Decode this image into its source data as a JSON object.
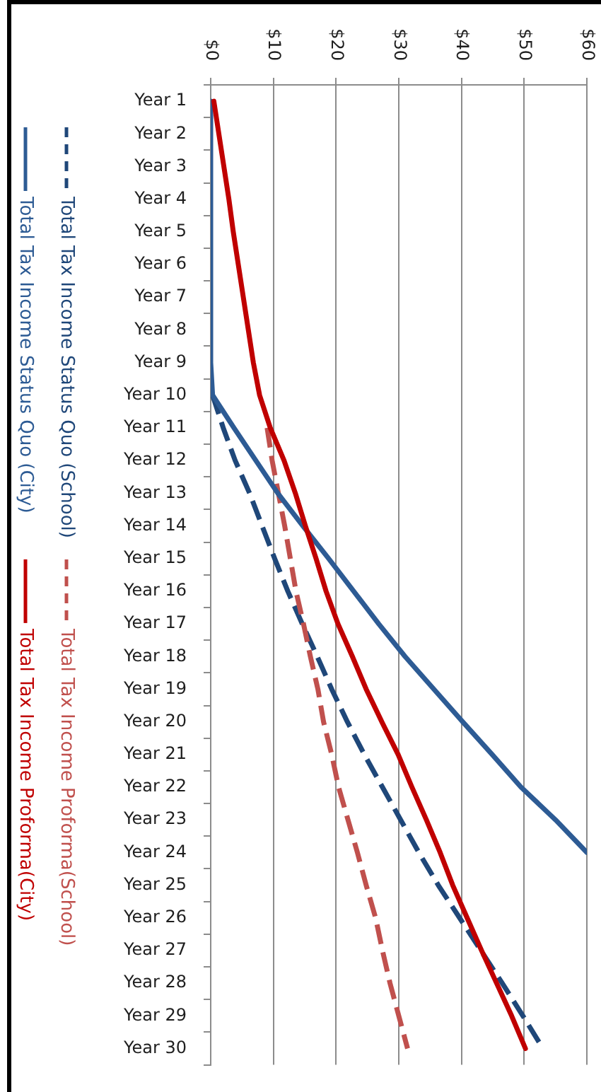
{
  "chart_data": {
    "type": "line",
    "orientation": "horizontal",
    "categories": [
      "Year 1",
      "Year 2",
      "Year 3",
      "Year 4",
      "Year 5",
      "Year 6",
      "Year 7",
      "Year 8",
      "Year 9",
      "Year 10",
      "Year 11",
      "Year 12",
      "Year 13",
      "Year 14",
      "Year 15",
      "Year 16",
      "Year 17",
      "Year 18",
      "Year 19",
      "Year 20",
      "Year 21",
      "Year 22",
      "Year 23",
      "Year 24",
      "Year 25",
      "Year 26",
      "Year 27",
      "Year 28",
      "Year 29",
      "Year 30"
    ],
    "series": [
      {
        "name": "Total Tax Income Status Quo (School)",
        "color": "#1f4779",
        "line_style": "dashed",
        "values": [
          null,
          null,
          null,
          null,
          null,
          null,
          null,
          null,
          null,
          0.3,
          2.0,
          3.9,
          6.2,
          8.2,
          10.2,
          12.3,
          14.6,
          17.0,
          19.3,
          21.8,
          24.5,
          27.4,
          30.3,
          33.2,
          36.3,
          39.7,
          43.1,
          46.5,
          49.8,
          53.0
        ]
      },
      {
        "name": "Total Tax Income Proforma(School)",
        "color": "#c0504d",
        "line_style": "dashed",
        "values": [
          null,
          null,
          null,
          null,
          null,
          null,
          null,
          null,
          null,
          null,
          9.0,
          9.8,
          10.8,
          11.8,
          12.7,
          13.6,
          14.8,
          15.9,
          17.1,
          18.0,
          19.3,
          20.4,
          21.9,
          23.4,
          24.8,
          26.3,
          27.4,
          28.6,
          30.0,
          31.4
        ]
      },
      {
        "name": "Total Tax Income Status Quo (City)",
        "color": "#2d5b94",
        "line_style": "solid",
        "values": [
          0,
          0,
          0,
          0,
          0,
          0,
          0,
          0,
          0,
          0.3,
          3.7,
          7.2,
          10.7,
          14.7,
          18.8,
          22.8,
          26.8,
          31.0,
          35.6,
          40.2,
          44.9,
          49.5,
          55.0,
          60,
          null,
          null,
          null,
          null,
          null,
          null
        ]
      },
      {
        "name": "Total Tax Income Proforma(City)",
        "color": "#c00000",
        "line_style": "solid",
        "values": [
          0.5,
          1.3,
          2.1,
          2.9,
          3.6,
          4.4,
          5.2,
          6.0,
          6.8,
          7.8,
          9.5,
          11.7,
          13.5,
          15.1,
          16.8,
          18.4,
          20.3,
          22.6,
          24.8,
          27.3,
          29.9,
          32.1,
          34.4,
          36.6,
          38.6,
          40.9,
          43.2,
          45.6,
          48.0,
          50.2
        ]
      }
    ],
    "xlim": [
      0,
      60
    ],
    "xticks": [
      {
        "value": 0,
        "label": "$0"
      },
      {
        "value": 10,
        "label": "$10"
      },
      {
        "value": 20,
        "label": "$20"
      },
      {
        "value": 30,
        "label": "$30"
      },
      {
        "value": 40,
        "label": "$40"
      },
      {
        "value": 50,
        "label": "$50"
      },
      {
        "value": 60,
        "label": "$60"
      }
    ],
    "grid": "x",
    "legend": "left",
    "marker": "none"
  }
}
